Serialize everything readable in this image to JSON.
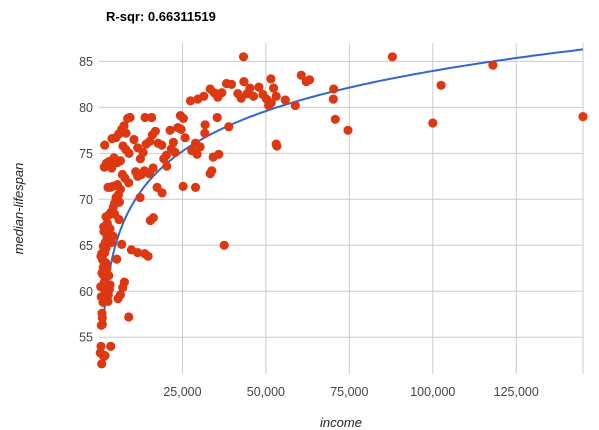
{
  "chart_data": {
    "type": "scatter",
    "title": "R-sqr: 0.66311519",
    "xlabel": "income",
    "ylabel": "median-lifespan",
    "xlim": [
      0,
      145000
    ],
    "ylim": [
      51,
      87
    ],
    "x_ticks": [
      25000,
      50000,
      75000,
      100000,
      125000
    ],
    "x_tick_labels": [
      "25,000",
      "50,000",
      "75,000",
      "100,000",
      "125,000"
    ],
    "y_ticks": [
      55,
      60,
      65,
      70,
      75,
      80,
      85
    ],
    "y_tick_labels": [
      "55",
      "60",
      "65",
      "70",
      "75",
      "80",
      "85"
    ],
    "grid": true,
    "colors": {
      "points": "#dc3912",
      "trendline": "#3366cc",
      "grid": "#cccccc"
    },
    "trendline": {
      "type": "logarithmic",
      "a": 6.3,
      "b": 11.43
    },
    "points": [
      [
        400,
        53.3
      ],
      [
        800,
        52.1
      ],
      [
        600,
        54.0
      ],
      [
        1100,
        53.1
      ],
      [
        1800,
        53.0
      ],
      [
        1500,
        52.9
      ],
      [
        700,
        56.3
      ],
      [
        1000,
        56.4
      ],
      [
        900,
        57.6
      ],
      [
        1200,
        58.8
      ],
      [
        700,
        59.4
      ],
      [
        1900,
        60.0
      ],
      [
        1600,
        61.0
      ],
      [
        500,
        60.5
      ],
      [
        2800,
        59.6
      ],
      [
        3100,
        60.2
      ],
      [
        3300,
        60.7
      ],
      [
        2200,
        59.9
      ],
      [
        900,
        62.0
      ],
      [
        1300,
        62.6
      ],
      [
        1100,
        63.4
      ],
      [
        600,
        63.8
      ],
      [
        1700,
        64.2
      ],
      [
        2100,
        64.7
      ],
      [
        1900,
        65.3
      ],
      [
        2400,
        65.9
      ],
      [
        2700,
        66.3
      ],
      [
        1500,
        66.5
      ],
      [
        800,
        64.1
      ],
      [
        1300,
        64.9
      ],
      [
        2500,
        67.4
      ],
      [
        3000,
        68.3
      ],
      [
        3600,
        68.6
      ],
      [
        4300,
        69.2
      ],
      [
        5100,
        70.2
      ],
      [
        4700,
        69.6
      ],
      [
        5800,
        70.5
      ],
      [
        2700,
        71.3
      ],
      [
        3400,
        71.3
      ],
      [
        4100,
        71.4
      ],
      [
        1600,
        73.5
      ],
      [
        2200,
        73.9
      ],
      [
        3000,
        74.1
      ],
      [
        3800,
        73.4
      ],
      [
        4500,
        74.5
      ],
      [
        5500,
        74.0
      ],
      [
        6400,
        74.2
      ],
      [
        1700,
        75.9
      ],
      [
        3900,
        76.6
      ],
      [
        5000,
        76.7
      ],
      [
        5900,
        77.1
      ],
      [
        6800,
        77.6
      ],
      [
        7500,
        78.0
      ],
      [
        8600,
        78.8
      ],
      [
        9300,
        78.9
      ],
      [
        8100,
        77.2
      ],
      [
        7200,
        75.8
      ],
      [
        9000,
        75.0
      ],
      [
        10500,
        76.5
      ],
      [
        11600,
        75.6
      ],
      [
        12400,
        74.4
      ],
      [
        13200,
        75.1
      ],
      [
        14100,
        76.0
      ],
      [
        15200,
        76.3
      ],
      [
        16000,
        77.0
      ],
      [
        16900,
        77.4
      ],
      [
        17700,
        76.1
      ],
      [
        18800,
        75.9
      ],
      [
        13800,
        78.9
      ],
      [
        15800,
        78.9
      ],
      [
        21300,
        77.5
      ],
      [
        23600,
        77.8
      ],
      [
        19400,
        74.4
      ],
      [
        20300,
        73.6
      ],
      [
        11000,
        73.0
      ],
      [
        11600,
        72.5
      ],
      [
        12700,
        72.7
      ],
      [
        13600,
        73.1
      ],
      [
        15100,
        72.8
      ],
      [
        16200,
        73.4
      ],
      [
        7800,
        72.3
      ],
      [
        8900,
        71.8
      ],
      [
        6400,
        71.1
      ],
      [
        7000,
        72.7
      ],
      [
        5500,
        71.6
      ],
      [
        12300,
        70.2
      ],
      [
        17400,
        71.3
      ],
      [
        18900,
        70.7
      ],
      [
        15400,
        67.7
      ],
      [
        16300,
        68.0
      ],
      [
        9700,
        64.5
      ],
      [
        11600,
        64.2
      ],
      [
        13700,
        64.1
      ],
      [
        14700,
        63.8
      ],
      [
        6800,
        65.1
      ],
      [
        5300,
        63.5
      ],
      [
        7600,
        61.0
      ],
      [
        6400,
        59.6
      ],
      [
        7100,
        60.4
      ],
      [
        5700,
        59.2
      ],
      [
        8900,
        57.2
      ],
      [
        24400,
        79.1
      ],
      [
        25300,
        78.8
      ],
      [
        27400,
        80.7
      ],
      [
        29600,
        80.9
      ],
      [
        31400,
        81.2
      ],
      [
        33300,
        82.0
      ],
      [
        34500,
        81.6
      ],
      [
        35600,
        81.1
      ],
      [
        36800,
        81.6
      ],
      [
        38200,
        82.6
      ],
      [
        39700,
        82.5
      ],
      [
        41600,
        81.5
      ],
      [
        42600,
        81.0
      ],
      [
        43400,
        82.8
      ],
      [
        44400,
        81.5
      ],
      [
        45200,
        82.1
      ],
      [
        46300,
        81.2
      ],
      [
        47900,
        82.2
      ],
      [
        49100,
        81.4
      ],
      [
        50200,
        80.9
      ],
      [
        50800,
        80.2
      ],
      [
        51600,
        80.5
      ],
      [
        52300,
        82.1
      ],
      [
        53100,
        81.2
      ],
      [
        43300,
        85.5
      ],
      [
        51500,
        83.1
      ],
      [
        55800,
        80.8
      ],
      [
        58800,
        80.2
      ],
      [
        60600,
        83.5
      ],
      [
        62100,
        82.8
      ],
      [
        63100,
        83.0
      ],
      [
        70300,
        82.0
      ],
      [
        70200,
        80.9
      ],
      [
        70800,
        78.7
      ],
      [
        74600,
        77.5
      ],
      [
        87900,
        85.5
      ],
      [
        100000,
        78.3
      ],
      [
        102500,
        82.4
      ],
      [
        118000,
        84.6
      ],
      [
        145000,
        79.0
      ],
      [
        53300,
        75.8
      ],
      [
        53100,
        76.0
      ],
      [
        37500,
        65.0
      ],
      [
        25200,
        71.4
      ],
      [
        28900,
        71.3
      ],
      [
        33300,
        72.8
      ],
      [
        33800,
        73.1
      ],
      [
        31700,
        77.2
      ],
      [
        30300,
        75.7
      ],
      [
        29400,
        74.9
      ],
      [
        27800,
        75.3
      ],
      [
        25800,
        76.7
      ],
      [
        24600,
        77.6
      ],
      [
        22300,
        76.2
      ],
      [
        21700,
        75.5
      ],
      [
        22800,
        75.1
      ],
      [
        20200,
        74.8
      ],
      [
        34200,
        74.6
      ],
      [
        35900,
        74.9
      ],
      [
        35400,
        78.9
      ],
      [
        38900,
        77.9
      ],
      [
        31800,
        78.1
      ],
      [
        28900,
        76.1
      ],
      [
        2000,
        63.1
      ],
      [
        2400,
        62.5
      ],
      [
        2900,
        61.7
      ],
      [
        1400,
        67.0
      ],
      [
        2100,
        68.1
      ],
      [
        3700,
        65.3
      ],
      [
        4200,
        66.0
      ],
      [
        3300,
        66.8
      ],
      [
        4700,
        68.4
      ],
      [
        6100,
        69.7
      ],
      [
        1200,
        61.8
      ],
      [
        2700,
        58.9
      ],
      [
        3500,
        54.0
      ],
      [
        1000,
        57.1
      ],
      [
        6000,
        67.8
      ],
      [
        8100,
        75.4
      ]
    ]
  }
}
